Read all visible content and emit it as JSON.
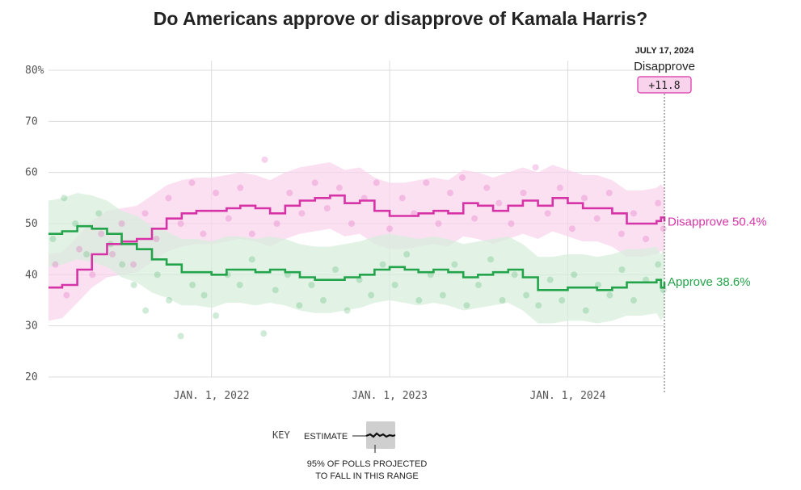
{
  "chart_data": {
    "type": "line",
    "title": "Do Americans approve or disapprove of Kamala Harris?",
    "ylim": [
      20,
      80
    ],
    "y_ticks": [
      "80%",
      "70",
      "60",
      "50",
      "40",
      "30",
      "20"
    ],
    "y_tick_values": [
      80,
      70,
      60,
      50,
      40,
      30,
      20
    ],
    "x_range": [
      "2021-02-01",
      "2024-07-17"
    ],
    "x_ticks": [
      {
        "date": "2022-01-01",
        "label": "JAN. 1, 2022"
      },
      {
        "date": "2023-01-01",
        "label": "JAN. 1, 2023"
      },
      {
        "date": "2024-01-01",
        "label": "JAN. 1, 2024"
      }
    ],
    "grid": true,
    "series": [
      {
        "name": "Disapprove",
        "color": "#d633a7",
        "band_color": "#f9d3ec",
        "end_label": "Disapprove 50.4%",
        "band_halfwidth": 6.5,
        "points": [
          [
            "2021-02-01",
            37.5
          ],
          [
            "2021-03-01",
            38
          ],
          [
            "2021-04-01",
            41
          ],
          [
            "2021-05-01",
            44
          ],
          [
            "2021-06-01",
            46
          ],
          [
            "2021-07-01",
            46.5
          ],
          [
            "2021-08-01",
            47
          ],
          [
            "2021-09-01",
            49
          ],
          [
            "2021-10-01",
            51
          ],
          [
            "2021-11-01",
            52
          ],
          [
            "2021-12-01",
            52.5
          ],
          [
            "2022-01-01",
            52.5
          ],
          [
            "2022-02-01",
            53
          ],
          [
            "2022-03-01",
            53.5
          ],
          [
            "2022-04-01",
            53
          ],
          [
            "2022-05-01",
            52
          ],
          [
            "2022-06-01",
            53.5
          ],
          [
            "2022-07-01",
            54.5
          ],
          [
            "2022-08-01",
            55
          ],
          [
            "2022-09-01",
            55.5
          ],
          [
            "2022-10-01",
            54
          ],
          [
            "2022-11-01",
            54.5
          ],
          [
            "2022-12-01",
            52.5
          ],
          [
            "2023-01-01",
            51.5
          ],
          [
            "2023-02-01",
            51.5
          ],
          [
            "2023-03-01",
            52
          ],
          [
            "2023-04-01",
            52.5
          ],
          [
            "2023-05-01",
            52
          ],
          [
            "2023-06-01",
            54
          ],
          [
            "2023-07-01",
            53.5
          ],
          [
            "2023-08-01",
            52.5
          ],
          [
            "2023-09-01",
            53.5
          ],
          [
            "2023-10-01",
            54.5
          ],
          [
            "2023-11-01",
            53.5
          ],
          [
            "2023-12-01",
            55
          ],
          [
            "2024-01-01",
            54
          ],
          [
            "2024-02-01",
            53
          ],
          [
            "2024-03-01",
            53
          ],
          [
            "2024-04-01",
            52
          ],
          [
            "2024-05-01",
            50
          ],
          [
            "2024-06-01",
            50
          ],
          [
            "2024-07-01",
            50.5
          ],
          [
            "2024-07-10",
            51.2
          ],
          [
            "2024-07-17",
            50.4
          ]
        ],
        "polls": [
          [
            "2021-02-15",
            42
          ],
          [
            "2021-03-10",
            36
          ],
          [
            "2021-04-05",
            45
          ],
          [
            "2021-05-02",
            40
          ],
          [
            "2021-05-20",
            48
          ],
          [
            "2021-06-12",
            44
          ],
          [
            "2021-07-01",
            50
          ],
          [
            "2021-07-25",
            42
          ],
          [
            "2021-08-18",
            52
          ],
          [
            "2021-09-10",
            47
          ],
          [
            "2021-10-05",
            55
          ],
          [
            "2021-10-30",
            50
          ],
          [
            "2021-11-22",
            58
          ],
          [
            "2021-12-15",
            48
          ],
          [
            "2022-01-10",
            56
          ],
          [
            "2022-02-05",
            51
          ],
          [
            "2022-03-01",
            57
          ],
          [
            "2022-03-25",
            48
          ],
          [
            "2022-04-20",
            62.5
          ],
          [
            "2022-05-15",
            50
          ],
          [
            "2022-06-10",
            56
          ],
          [
            "2022-07-05",
            52
          ],
          [
            "2022-08-01",
            58
          ],
          [
            "2022-08-26",
            53
          ],
          [
            "2022-09-20",
            57
          ],
          [
            "2022-10-15",
            50
          ],
          [
            "2022-11-10",
            55
          ],
          [
            "2022-12-05",
            58
          ],
          [
            "2023-01-01",
            49
          ],
          [
            "2023-01-27",
            55
          ],
          [
            "2023-02-20",
            52
          ],
          [
            "2023-03-17",
            58
          ],
          [
            "2023-04-11",
            50
          ],
          [
            "2023-05-05",
            56
          ],
          [
            "2023-05-30",
            59
          ],
          [
            "2023-06-24",
            51
          ],
          [
            "2023-07-19",
            57
          ],
          [
            "2023-08-13",
            54
          ],
          [
            "2023-09-07",
            50
          ],
          [
            "2023-10-02",
            56
          ],
          [
            "2023-10-27",
            61
          ],
          [
            "2023-11-21",
            52
          ],
          [
            "2023-12-16",
            57
          ],
          [
            "2024-01-10",
            49
          ],
          [
            "2024-02-04",
            55
          ],
          [
            "2024-03-01",
            51
          ],
          [
            "2024-03-26",
            56
          ],
          [
            "2024-04-20",
            48
          ],
          [
            "2024-05-15",
            52
          ],
          [
            "2024-06-09",
            47
          ],
          [
            "2024-07-04",
            54
          ],
          [
            "2024-07-15",
            49
          ]
        ]
      },
      {
        "name": "Approve",
        "color": "#23a34a",
        "band_color": "#d6eedc",
        "end_label": "Approve 38.6%",
        "band_halfwidth": 6.5,
        "points": [
          [
            "2021-02-01",
            48
          ],
          [
            "2021-03-01",
            48.5
          ],
          [
            "2021-04-01",
            49.5
          ],
          [
            "2021-05-01",
            49
          ],
          [
            "2021-06-01",
            48
          ],
          [
            "2021-07-01",
            46
          ],
          [
            "2021-08-01",
            45
          ],
          [
            "2021-09-01",
            43
          ],
          [
            "2021-10-01",
            42
          ],
          [
            "2021-11-01",
            40.5
          ],
          [
            "2021-12-01",
            40.5
          ],
          [
            "2022-01-01",
            40
          ],
          [
            "2022-02-01",
            41
          ],
          [
            "2022-03-01",
            41
          ],
          [
            "2022-04-01",
            40.5
          ],
          [
            "2022-05-01",
            41
          ],
          [
            "2022-06-01",
            40.5
          ],
          [
            "2022-07-01",
            39.5
          ],
          [
            "2022-08-01",
            39
          ],
          [
            "2022-09-01",
            39
          ],
          [
            "2022-10-01",
            39.5
          ],
          [
            "2022-11-01",
            40
          ],
          [
            "2022-12-01",
            41
          ],
          [
            "2023-01-01",
            41.5
          ],
          [
            "2023-02-01",
            41
          ],
          [
            "2023-03-01",
            40.5
          ],
          [
            "2023-04-01",
            41
          ],
          [
            "2023-05-01",
            40.5
          ],
          [
            "2023-06-01",
            39.5
          ],
          [
            "2023-07-01",
            40
          ],
          [
            "2023-08-01",
            40.5
          ],
          [
            "2023-09-01",
            41
          ],
          [
            "2023-10-01",
            39.5
          ],
          [
            "2023-11-01",
            37
          ],
          [
            "2023-12-01",
            37
          ],
          [
            "2024-01-01",
            37.5
          ],
          [
            "2024-02-01",
            37.5
          ],
          [
            "2024-03-01",
            37
          ],
          [
            "2024-04-01",
            37.5
          ],
          [
            "2024-05-01",
            38.5
          ],
          [
            "2024-06-01",
            38.5
          ],
          [
            "2024-07-01",
            39
          ],
          [
            "2024-07-10",
            37.5
          ],
          [
            "2024-07-17",
            38.6
          ]
        ],
        "polls": [
          [
            "2021-02-10",
            47
          ],
          [
            "2021-03-05",
            55
          ],
          [
            "2021-03-28",
            50
          ],
          [
            "2021-04-20",
            44
          ],
          [
            "2021-05-15",
            52
          ],
          [
            "2021-06-08",
            46
          ],
          [
            "2021-07-02",
            42
          ],
          [
            "2021-07-26",
            38
          ],
          [
            "2021-08-19",
            33
          ],
          [
            "2021-09-12",
            40
          ],
          [
            "2021-10-06",
            35
          ],
          [
            "2021-10-30",
            28
          ],
          [
            "2021-11-23",
            38
          ],
          [
            "2021-12-17",
            36
          ],
          [
            "2022-01-10",
            32
          ],
          [
            "2022-02-03",
            40
          ],
          [
            "2022-02-28",
            38
          ],
          [
            "2022-03-25",
            43
          ],
          [
            "2022-04-18",
            28.5
          ],
          [
            "2022-05-12",
            37
          ],
          [
            "2022-06-06",
            40
          ],
          [
            "2022-06-30",
            34
          ],
          [
            "2022-07-25",
            38
          ],
          [
            "2022-08-18",
            35
          ],
          [
            "2022-09-12",
            41
          ],
          [
            "2022-10-06",
            33
          ],
          [
            "2022-10-31",
            39
          ],
          [
            "2022-11-24",
            36
          ],
          [
            "2022-12-18",
            42
          ],
          [
            "2023-01-12",
            38
          ],
          [
            "2023-02-05",
            44
          ],
          [
            "2023-03-02",
            35
          ],
          [
            "2023-03-26",
            40
          ],
          [
            "2023-04-20",
            36
          ],
          [
            "2023-05-14",
            42
          ],
          [
            "2023-06-08",
            34
          ],
          [
            "2023-07-02",
            38
          ],
          [
            "2023-07-27",
            43
          ],
          [
            "2023-08-20",
            35
          ],
          [
            "2023-09-14",
            40
          ],
          [
            "2023-10-08",
            36
          ],
          [
            "2023-11-02",
            34
          ],
          [
            "2023-11-26",
            39
          ],
          [
            "2023-12-20",
            35
          ],
          [
            "2024-01-14",
            40
          ],
          [
            "2024-02-07",
            33
          ],
          [
            "2024-03-03",
            38
          ],
          [
            "2024-03-27",
            36
          ],
          [
            "2024-04-21",
            41
          ],
          [
            "2024-05-15",
            35
          ],
          [
            "2024-06-09",
            39
          ],
          [
            "2024-07-04",
            42
          ],
          [
            "2024-07-15",
            37
          ]
        ]
      }
    ],
    "marker": {
      "date": "2024-07-17",
      "date_label": "JULY 17, 2024",
      "series_label": "Disapprove",
      "value_label": "+11.8",
      "badge_color": "#f9d3ec",
      "badge_border": "#d633a7"
    },
    "key": {
      "title": "KEY",
      "estimate_label": "ESTIMATE",
      "range_label_line1": "95% OF POLLS PROJECTED",
      "range_label_line2": "TO FALL IN THIS RANGE"
    }
  }
}
